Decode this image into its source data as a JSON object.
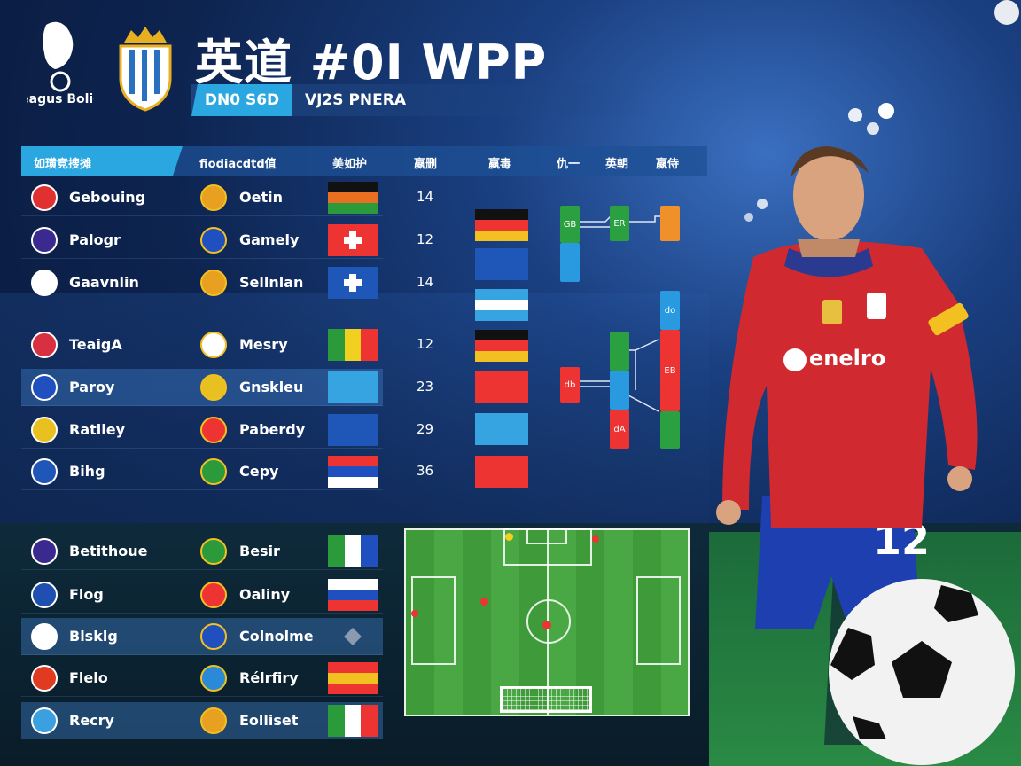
{
  "header": {
    "title": "英道 #0I WPP",
    "league_logo_text": "Leagus Bolior",
    "banner_primary": "DN0 S6D",
    "banner_secondary": "VJ2S PNERA"
  },
  "table": {
    "headers": [
      "如璜竞搜摊",
      "fiodiacdtd值",
      "美如护",
      "嬴删",
      "嬴毒",
      "仇一",
      "英朝",
      "嬴侍"
    ],
    "rows": [
      {
        "team": "Gebouing",
        "icon": "england-crest-icon",
        "icolor": "#e03030",
        "opponent": "Oetin",
        "oicon": "shield-crest-icon",
        "ocolor": "#e8a020",
        "flag": [
          "#111",
          "#e87020",
          "#2a9a3a"
        ],
        "value": "14"
      },
      {
        "team": "Palogr",
        "icon": "shield-crest-icon",
        "icolor": "#3a2a90",
        "opponent": "Gamely",
        "oicon": "union-jack-icon",
        "ocolor": "#2050c0",
        "flag": [
          "#e33",
          "#e33",
          "#e33"
        ],
        "cross": true,
        "value": "12"
      },
      {
        "team": "Gaavnlin",
        "icon": "shield-crest-icon",
        "icolor": "#fff",
        "opponent": "Sellnlan",
        "oicon": "shield-crest-icon",
        "ocolor": "#e8a020",
        "flag": [
          "#1f57b8",
          "#1f57b8",
          "#1f57b8"
        ],
        "cross": true,
        "value": "14"
      },
      {
        "team": "TeaigA",
        "icon": "round-crest-icon",
        "icolor": "#d83040",
        "opponent": "Mesry",
        "oicon": "soccer-ball-icon",
        "ocolor": "#fff",
        "flag": [
          "#2a9a3a",
          "#f2d020",
          "#e33"
        ],
        "vertical": true,
        "value": "12"
      },
      {
        "team": "Paroy",
        "icon": "union-jack-icon",
        "icolor": "#2050c0",
        "opponent": "Gnskleu",
        "oicon": "round-crest-icon",
        "ocolor": "#e8c020",
        "flag": [
          "#35a4e0",
          "#35a4e0",
          "#35a4e0"
        ],
        "value": "23",
        "highlight": true
      },
      {
        "team": "Ratiiey",
        "icon": "round-crest-icon",
        "icolor": "#e8c020",
        "opponent": "Paberdy",
        "oicon": "flag-icon",
        "ocolor": "#e33",
        "flag": [
          "#1f57b8",
          "#1f57b8",
          "#1f57b8"
        ],
        "value": "29"
      },
      {
        "team": "Bihg",
        "icon": "square-crest-icon",
        "icolor": "#1f57b8",
        "opponent": "Cepy",
        "oicon": "round-crest-icon",
        "ocolor": "#2a9a3a",
        "flag": [
          "#e33",
          "#2050c0",
          "#fff"
        ],
        "value": "36"
      },
      {
        "team": "Betithoue",
        "icon": "shield-crest-icon",
        "icolor": "#3a2a90",
        "opponent": "Besir",
        "oicon": "shield-crest-icon",
        "ocolor": "#2a9a3a",
        "flag": [
          "#2a9a3a",
          "#fff",
          "#2050c0"
        ],
        "vertical": true
      },
      {
        "team": "Flog",
        "icon": "round-crest-icon",
        "icolor": "#1f4fb0",
        "opponent": "Oaliny",
        "oicon": "round-crest-icon",
        "ocolor": "#e33",
        "flag": [
          "#fff",
          "#2050c0",
          "#e33"
        ]
      },
      {
        "team": "Blsklg",
        "icon": "england-crest-icon",
        "icolor": "#fff",
        "opponent": "Colnolme",
        "oicon": "union-jack-icon",
        "ocolor": "#2050c0",
        "flag": [],
        "highlight": true
      },
      {
        "team": "Flelo",
        "icon": "shield-crest-icon",
        "icolor": "#e03a20",
        "opponent": "Rélrfiry",
        "oicon": "round-crest-icon",
        "ocolor": "#2a8ad8",
        "flag": [
          "#e33",
          "#f2c020",
          "#e33"
        ]
      },
      {
        "team": "Recry",
        "icon": "round-crest-icon",
        "icolor": "#3aa0e0",
        "opponent": "Eolliset",
        "oicon": "shield-crest-icon",
        "ocolor": "#e8a020",
        "flag": [
          "#2a9a3a",
          "#fff",
          "#e33"
        ],
        "vertical": true,
        "highlight": true
      }
    ]
  },
  "bracket": {
    "flags": [
      [
        "#111",
        "#e33",
        "#f2c020"
      ],
      [
        "#1f57b8",
        "#1f57b8",
        "#1f57b8"
      ],
      [
        "#35a4e0",
        "#fff",
        "#35a4e0"
      ],
      [
        "#111",
        "#e33",
        "#f2c020"
      ],
      [
        "#e33",
        "#e33",
        "#e33"
      ],
      [
        "#35a4e0",
        "#35a4e0",
        "#35a4e0"
      ],
      [
        "#e33",
        "#e33",
        "#e33"
      ]
    ],
    "labels": [
      "GB",
      "ER",
      "EB",
      "db",
      "do",
      "dA"
    ]
  },
  "player": {
    "sponsor": "enelro",
    "number": "12"
  },
  "colors": {
    "accent": "#2aa7e0",
    "background": "#0d2450",
    "highlight_row": "#3c78be"
  }
}
